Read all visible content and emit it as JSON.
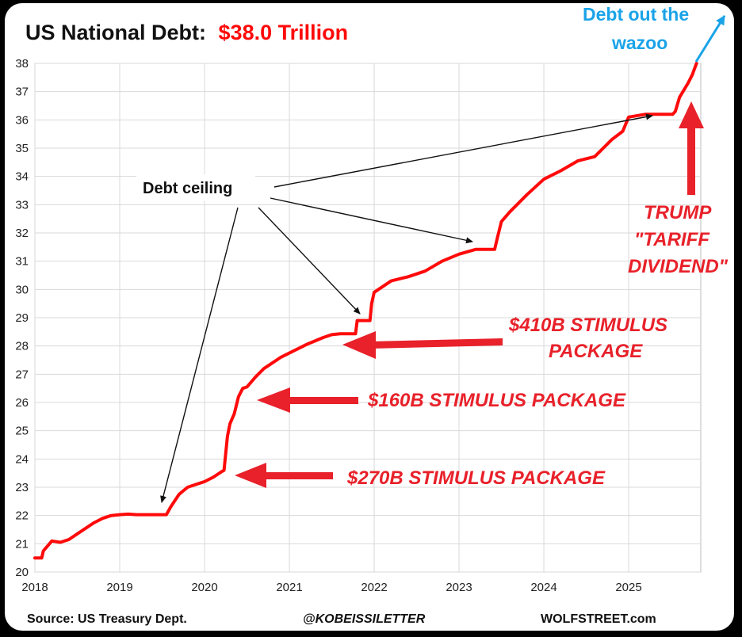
{
  "chart_data": {
    "type": "line",
    "title_prefix": "US National Debt:",
    "title_value": "$38.0 Trillion",
    "xlabel": "",
    "ylabel": "",
    "xlim": [
      2018,
      2025.85
    ],
    "ylim": [
      20,
      38
    ],
    "x_ticks": [
      "2018",
      "2019",
      "2020",
      "2021",
      "2022",
      "2023",
      "2024",
      "2025"
    ],
    "y_ticks": [
      "20",
      "21",
      "22",
      "23",
      "24",
      "25",
      "26",
      "27",
      "28",
      "29",
      "30",
      "31",
      "32",
      "33",
      "34",
      "35",
      "36",
      "37",
      "38"
    ],
    "grid": true,
    "series": [
      {
        "name": "US National Debt (trillions $)",
        "color": "#ff0a0a",
        "x": [
          2018.0,
          2018.08,
          2018.1,
          2018.2,
          2018.3,
          2018.4,
          2018.5,
          2018.6,
          2018.7,
          2018.8,
          2018.9,
          2019.0,
          2019.1,
          2019.2,
          2019.3,
          2019.4,
          2019.55,
          2019.6,
          2019.7,
          2019.8,
          2019.9,
          2020.0,
          2020.1,
          2020.2,
          2020.23,
          2020.27,
          2020.3,
          2020.35,
          2020.4,
          2020.45,
          2020.5,
          2020.6,
          2020.7,
          2020.8,
          2020.9,
          2021.0,
          2021.2,
          2021.4,
          2021.5,
          2021.6,
          2021.7,
          2021.78,
          2021.8,
          2021.82,
          2021.9,
          2021.95,
          2021.97,
          2022.0,
          2022.2,
          2022.4,
          2022.6,
          2022.8,
          2023.0,
          2023.2,
          2023.42,
          2023.45,
          2023.5,
          2023.6,
          2023.8,
          2024.0,
          2024.2,
          2024.4,
          2024.6,
          2024.8,
          2024.93,
          2025.0,
          2025.2,
          2025.5,
          2025.52,
          2025.55,
          2025.6,
          2025.7,
          2025.75,
          2025.8
        ],
        "y": [
          20.5,
          20.5,
          20.75,
          21.1,
          21.05,
          21.15,
          21.35,
          21.55,
          21.75,
          21.9,
          22.0,
          22.03,
          22.05,
          22.03,
          22.03,
          22.03,
          22.03,
          22.3,
          22.75,
          23.0,
          23.1,
          23.2,
          23.35,
          23.55,
          23.6,
          24.8,
          25.25,
          25.6,
          26.2,
          26.5,
          26.55,
          26.9,
          27.2,
          27.4,
          27.6,
          27.75,
          28.05,
          28.3,
          28.4,
          28.43,
          28.43,
          28.43,
          28.9,
          28.9,
          28.9,
          28.9,
          29.5,
          29.9,
          30.3,
          30.45,
          30.65,
          31.0,
          31.25,
          31.42,
          31.42,
          31.8,
          32.4,
          32.75,
          33.35,
          33.9,
          34.2,
          34.55,
          34.7,
          35.3,
          35.6,
          36.1,
          36.2,
          36.2,
          36.2,
          36.3,
          36.8,
          37.3,
          37.6,
          38.0
        ]
      }
    ],
    "annotations": {
      "debt_ceiling": "Debt ceiling",
      "stimulus_270": "$270B STIMULUS PACKAGE",
      "stimulus_160": "$160B STIMULUS PACKAGE",
      "stimulus_410_line1": "$410B STIMULUS",
      "stimulus_410_line2": "PACKAGE",
      "trump_line1": "TRUMP",
      "trump_line2": "\"TARIFF",
      "trump_line3": "DIVIDEND\"",
      "wazoo_line1": "Debt out the",
      "wazoo_line2": "wazoo"
    },
    "footer": {
      "source": "Source: US Treasury Dept.",
      "handle": "@KOBEISSILETTER",
      "site": "WOLFSTREET.com"
    }
  },
  "colors": {
    "line": "#ff0a0a",
    "annotation_red": "#e8212a",
    "annotation_blue": "#1aa3e8",
    "grid": "#d9d9d9"
  }
}
